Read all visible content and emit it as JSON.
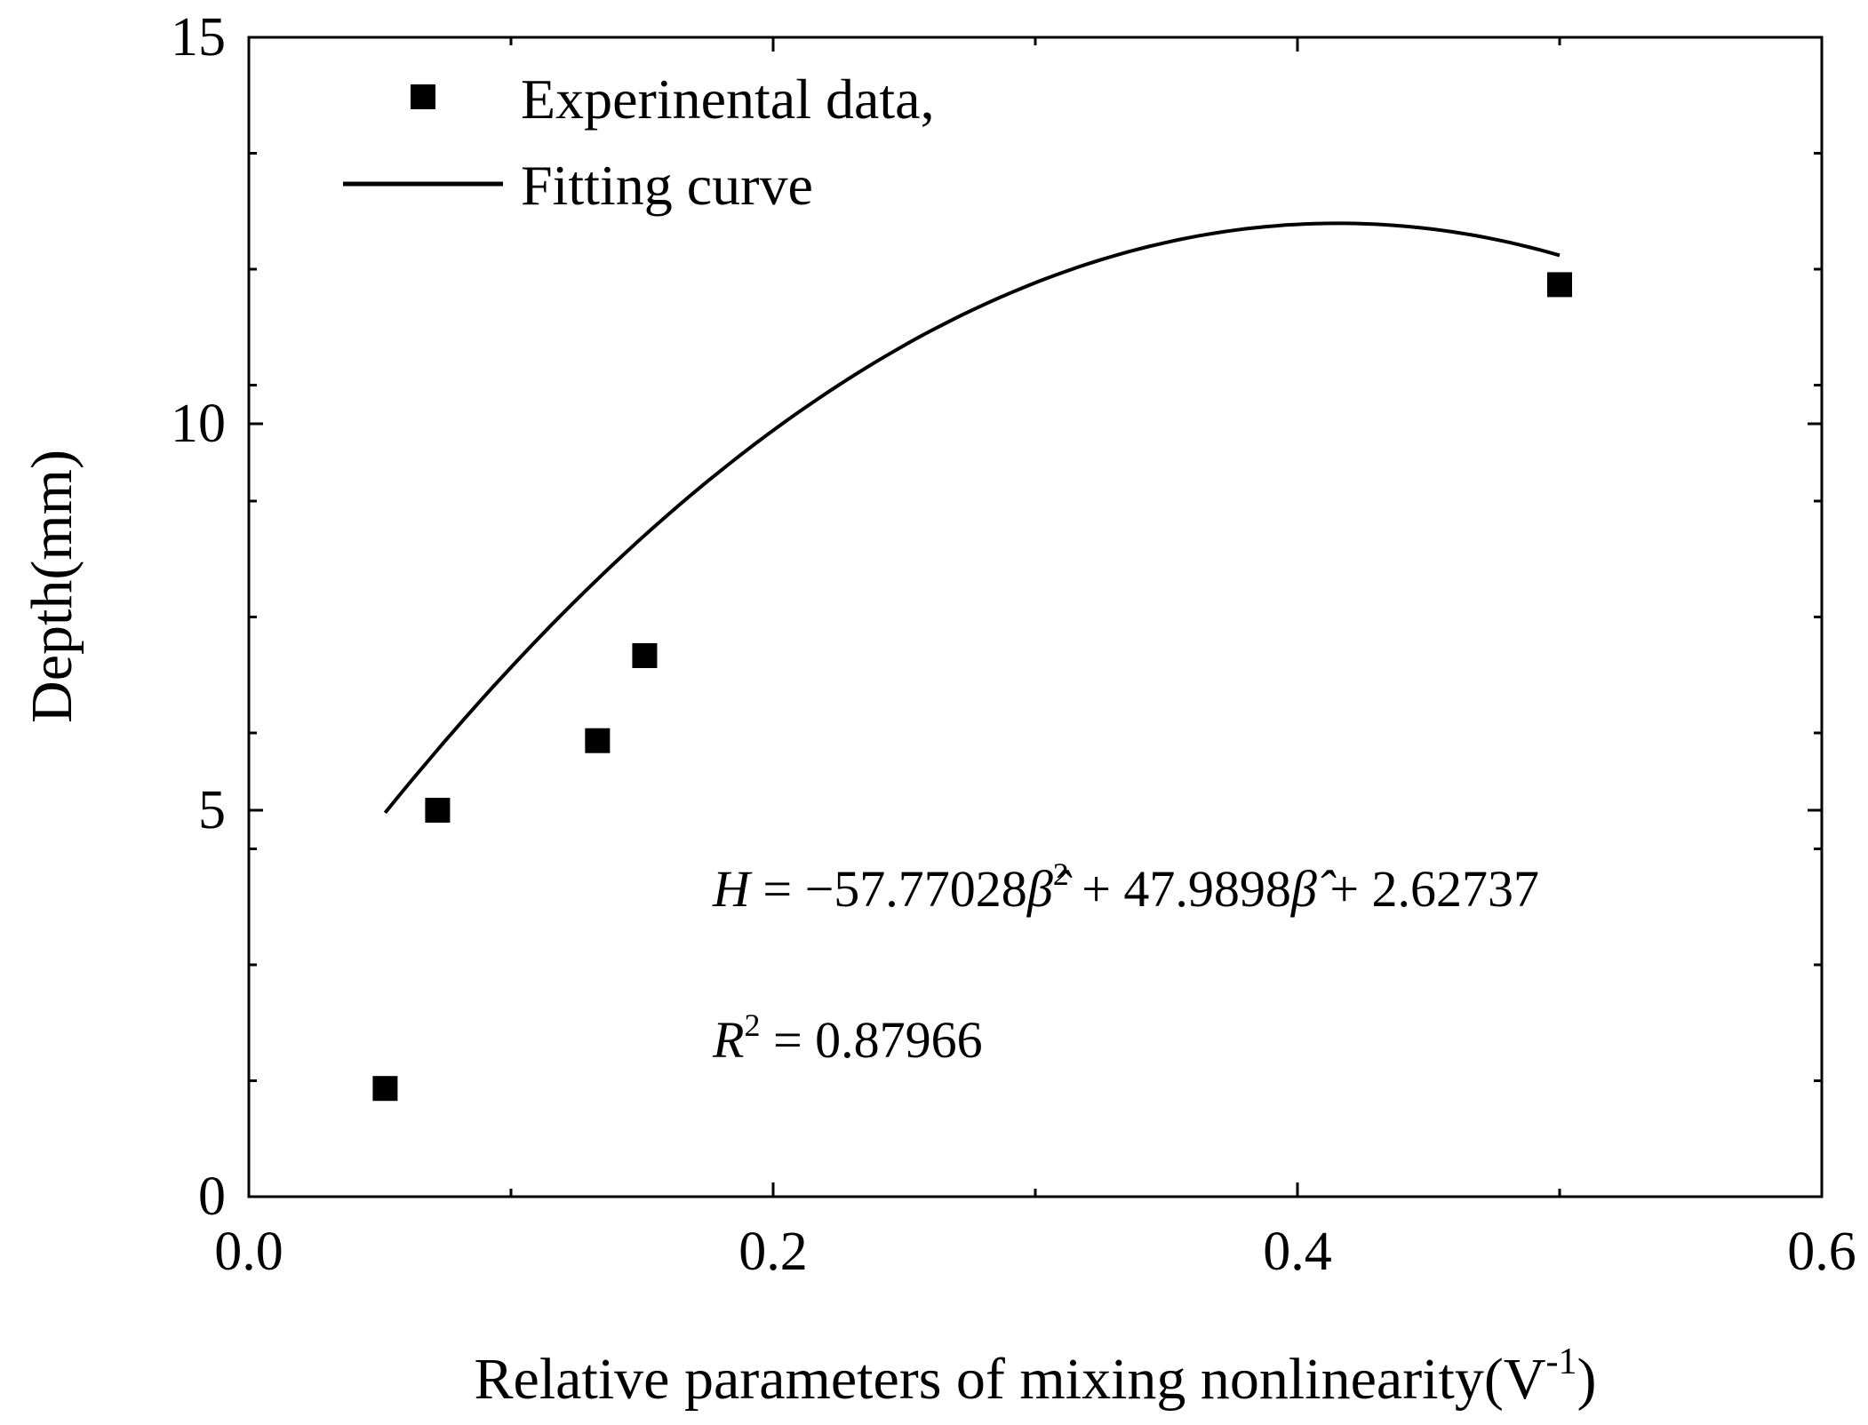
{
  "chart_data": {
    "type": "scatter",
    "title": "",
    "xlabel": "Relative parameters of mixing nonlinearity(V",
    "xlabel_superscript": "-1",
    "xlabel_suffix": ")",
    "ylabel": "Depth(mm)",
    "xlim": [
      0.0,
      0.6
    ],
    "ylim": [
      0,
      15
    ],
    "x_ticks": [
      0.0,
      0.2,
      0.4,
      0.6
    ],
    "x_tick_labels": [
      "0.0",
      "0.2",
      "0.4",
      "0.6"
    ],
    "y_ticks": [
      0,
      5,
      10,
      15
    ],
    "y_tick_labels": [
      "0",
      "5",
      "10",
      "15"
    ],
    "x_minor_step": 0.1,
    "y_minor_step": 1.5,
    "grid": false,
    "legend_position": "top-left",
    "series": [
      {
        "name": "Experinental data,",
        "kind": "scatter",
        "marker": "square",
        "color": "#000000",
        "points": [
          {
            "x": 0.052,
            "y": 1.4
          },
          {
            "x": 0.072,
            "y": 5.0
          },
          {
            "x": 0.133,
            "y": 5.9
          },
          {
            "x": 0.151,
            "y": 7.0
          },
          {
            "x": 0.5,
            "y": 11.8
          }
        ]
      },
      {
        "name": "Fitting curve",
        "kind": "line",
        "color": "#000000",
        "fit": {
          "a": -57.77028,
          "b": 47.9898,
          "c": 2.62737,
          "x_start": 0.052,
          "x_end": 0.5
        }
      }
    ],
    "annotations": {
      "equation": {
        "lhs": "H",
        "eq": " = −57.77028",
        "beta1": "β̂",
        "sup1": "2",
        "mid": " + 47.9898",
        "beta2": "β̂",
        "tail": " + 2.62737"
      },
      "r_squared": {
        "lhs": "R",
        "sup": "2",
        "rhs": " = 0.87966"
      }
    }
  }
}
